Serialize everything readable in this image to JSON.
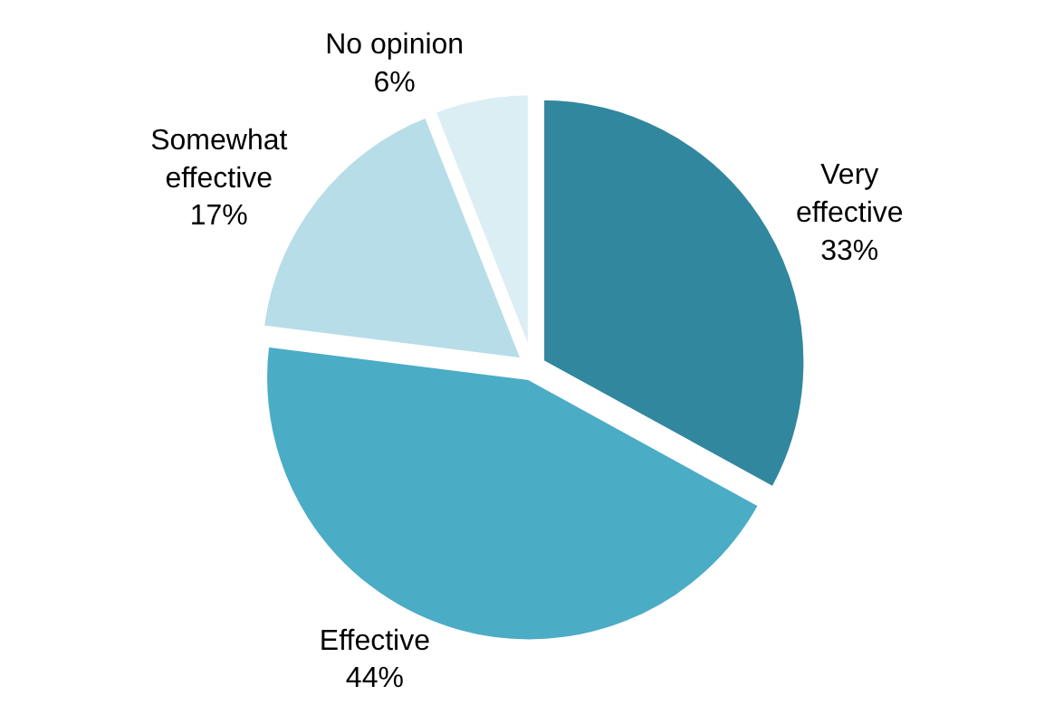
{
  "chart_data": {
    "type": "pie",
    "categories": [
      "Very effective",
      "Effective",
      "Somewhat effective",
      "No opinion"
    ],
    "values": [
      33,
      44,
      17,
      6
    ],
    "value_labels": [
      "33%",
      "44%",
      "17%",
      "6%"
    ],
    "colors": [
      "#31879e",
      "#4bacc6",
      "#b7dde8",
      "#dbeef3"
    ],
    "legend": false
  }
}
